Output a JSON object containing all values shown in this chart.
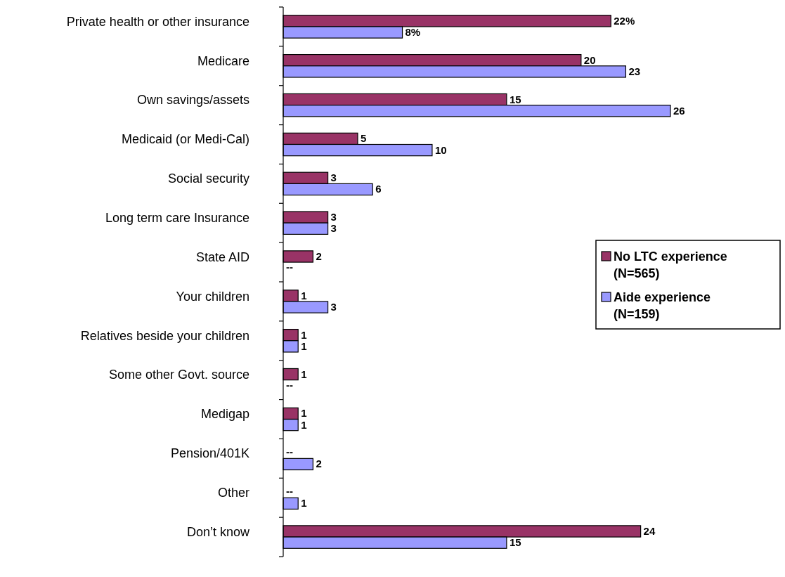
{
  "chart_data": {
    "type": "bar",
    "orientation": "horizontal",
    "legend": "right",
    "categories": [
      "Private health or other insurance",
      "Medicare",
      "Own savings/assets",
      "Medicaid (or Medi-Cal)",
      "Social security",
      "Long term care Insurance",
      "State AID",
      "Your children",
      "Relatives beside your children",
      "Some other Govt. source",
      "Medigap",
      "Pension/401K",
      "Other",
      "Don’t know"
    ],
    "series": [
      {
        "name": "No LTC experience (N=565)",
        "color": "#993366",
        "values": [
          22,
          20,
          15,
          5,
          3,
          3,
          2,
          1,
          1,
          1,
          1,
          null,
          null,
          24
        ],
        "value_labels": [
          "22%",
          "20",
          "15",
          "5",
          "3",
          "3",
          "2",
          "1",
          "1",
          "1",
          "1",
          "--",
          "--",
          "24"
        ]
      },
      {
        "name": "Aide experience (N=159)",
        "color": "#9999ff",
        "values": [
          8,
          23,
          26,
          10,
          6,
          3,
          null,
          3,
          1,
          null,
          1,
          2,
          1,
          15
        ],
        "value_labels": [
          "8%",
          "23",
          "26",
          "10",
          "6",
          "3",
          "--",
          "3",
          "1",
          "--",
          "1",
          "2",
          "1",
          "15"
        ]
      }
    ]
  }
}
